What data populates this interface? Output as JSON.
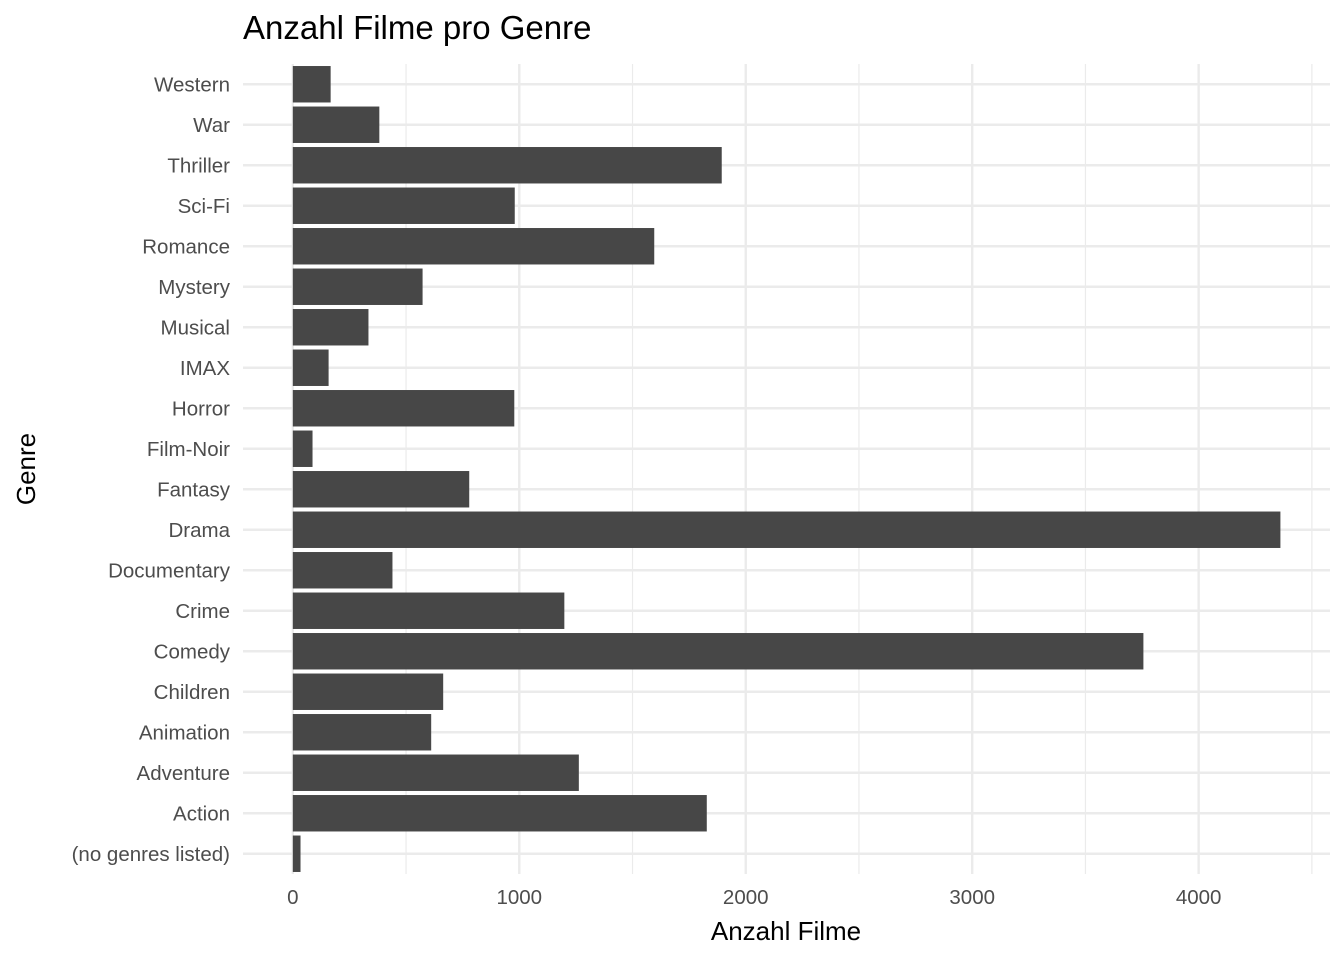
{
  "chart_data": {
    "type": "bar",
    "orientation": "horizontal",
    "title": "Anzahl Filme pro Genre",
    "xlabel": "Anzahl Filme",
    "ylabel": "Genre",
    "categories": [
      "(no genres listed)",
      "Action",
      "Adventure",
      "Animation",
      "Children",
      "Comedy",
      "Crime",
      "Documentary",
      "Drama",
      "Fantasy",
      "Film-Noir",
      "Horror",
      "IMAX",
      "Musical",
      "Mystery",
      "Romance",
      "Sci-Fi",
      "Thriller",
      "War",
      "Western"
    ],
    "values": [
      34,
      1828,
      1263,
      611,
      664,
      3756,
      1199,
      440,
      4361,
      779,
      87,
      978,
      158,
      334,
      573,
      1596,
      980,
      1894,
      382,
      167
    ],
    "xlim": [
      -220,
      4580
    ],
    "xticks": [
      "0",
      "1000",
      "2000",
      "3000",
      "4000"
    ],
    "grid": true,
    "bar_color": "#474747",
    "grid_color": "#ebebeb",
    "background": "#ffffff"
  }
}
